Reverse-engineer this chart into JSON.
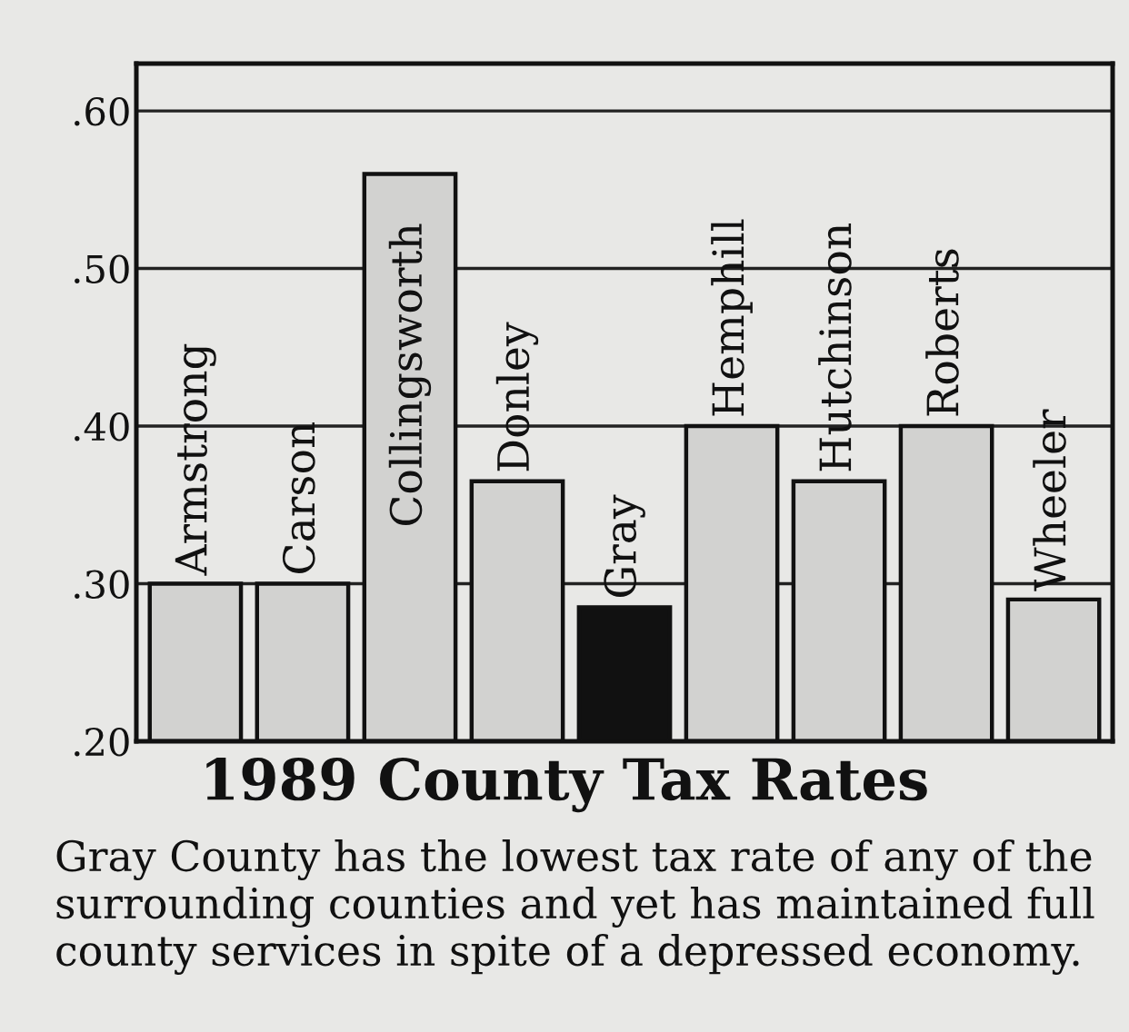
{
  "chart_data": {
    "type": "bar",
    "title": "1989 County Tax Rates",
    "categories": [
      "Armstrong",
      "Carson",
      "Collingsworth",
      "Donley",
      "Gray",
      "Hemphill",
      "Hutchinson",
      "Roberts",
      "Wheeler"
    ],
    "values": [
      0.3,
      0.3,
      0.56,
      0.365,
      0.285,
      0.4,
      0.365,
      0.4,
      0.29
    ],
    "colors": [
      "#d2d2d0",
      "#d2d2d0",
      "#d2d2d0",
      "#d2d2d0",
      "#111111",
      "#d2d2d0",
      "#d2d2d0",
      "#d2d2d0",
      "#d2d2d0"
    ],
    "ylim": [
      0.2,
      0.63
    ],
    "yticks": [
      {
        "value": 0.2,
        "label": ".20"
      },
      {
        "value": 0.3,
        "label": ".30"
      },
      {
        "value": 0.4,
        "label": ".40"
      },
      {
        "value": 0.5,
        "label": ".50"
      },
      {
        "value": 0.6,
        "label": ".60"
      }
    ],
    "grid": "y",
    "annotations": [
      "Gray County has the lowest tax rate of any of the surrounding counties and yet has maintained full county services in spite of a depressed economy."
    ]
  }
}
